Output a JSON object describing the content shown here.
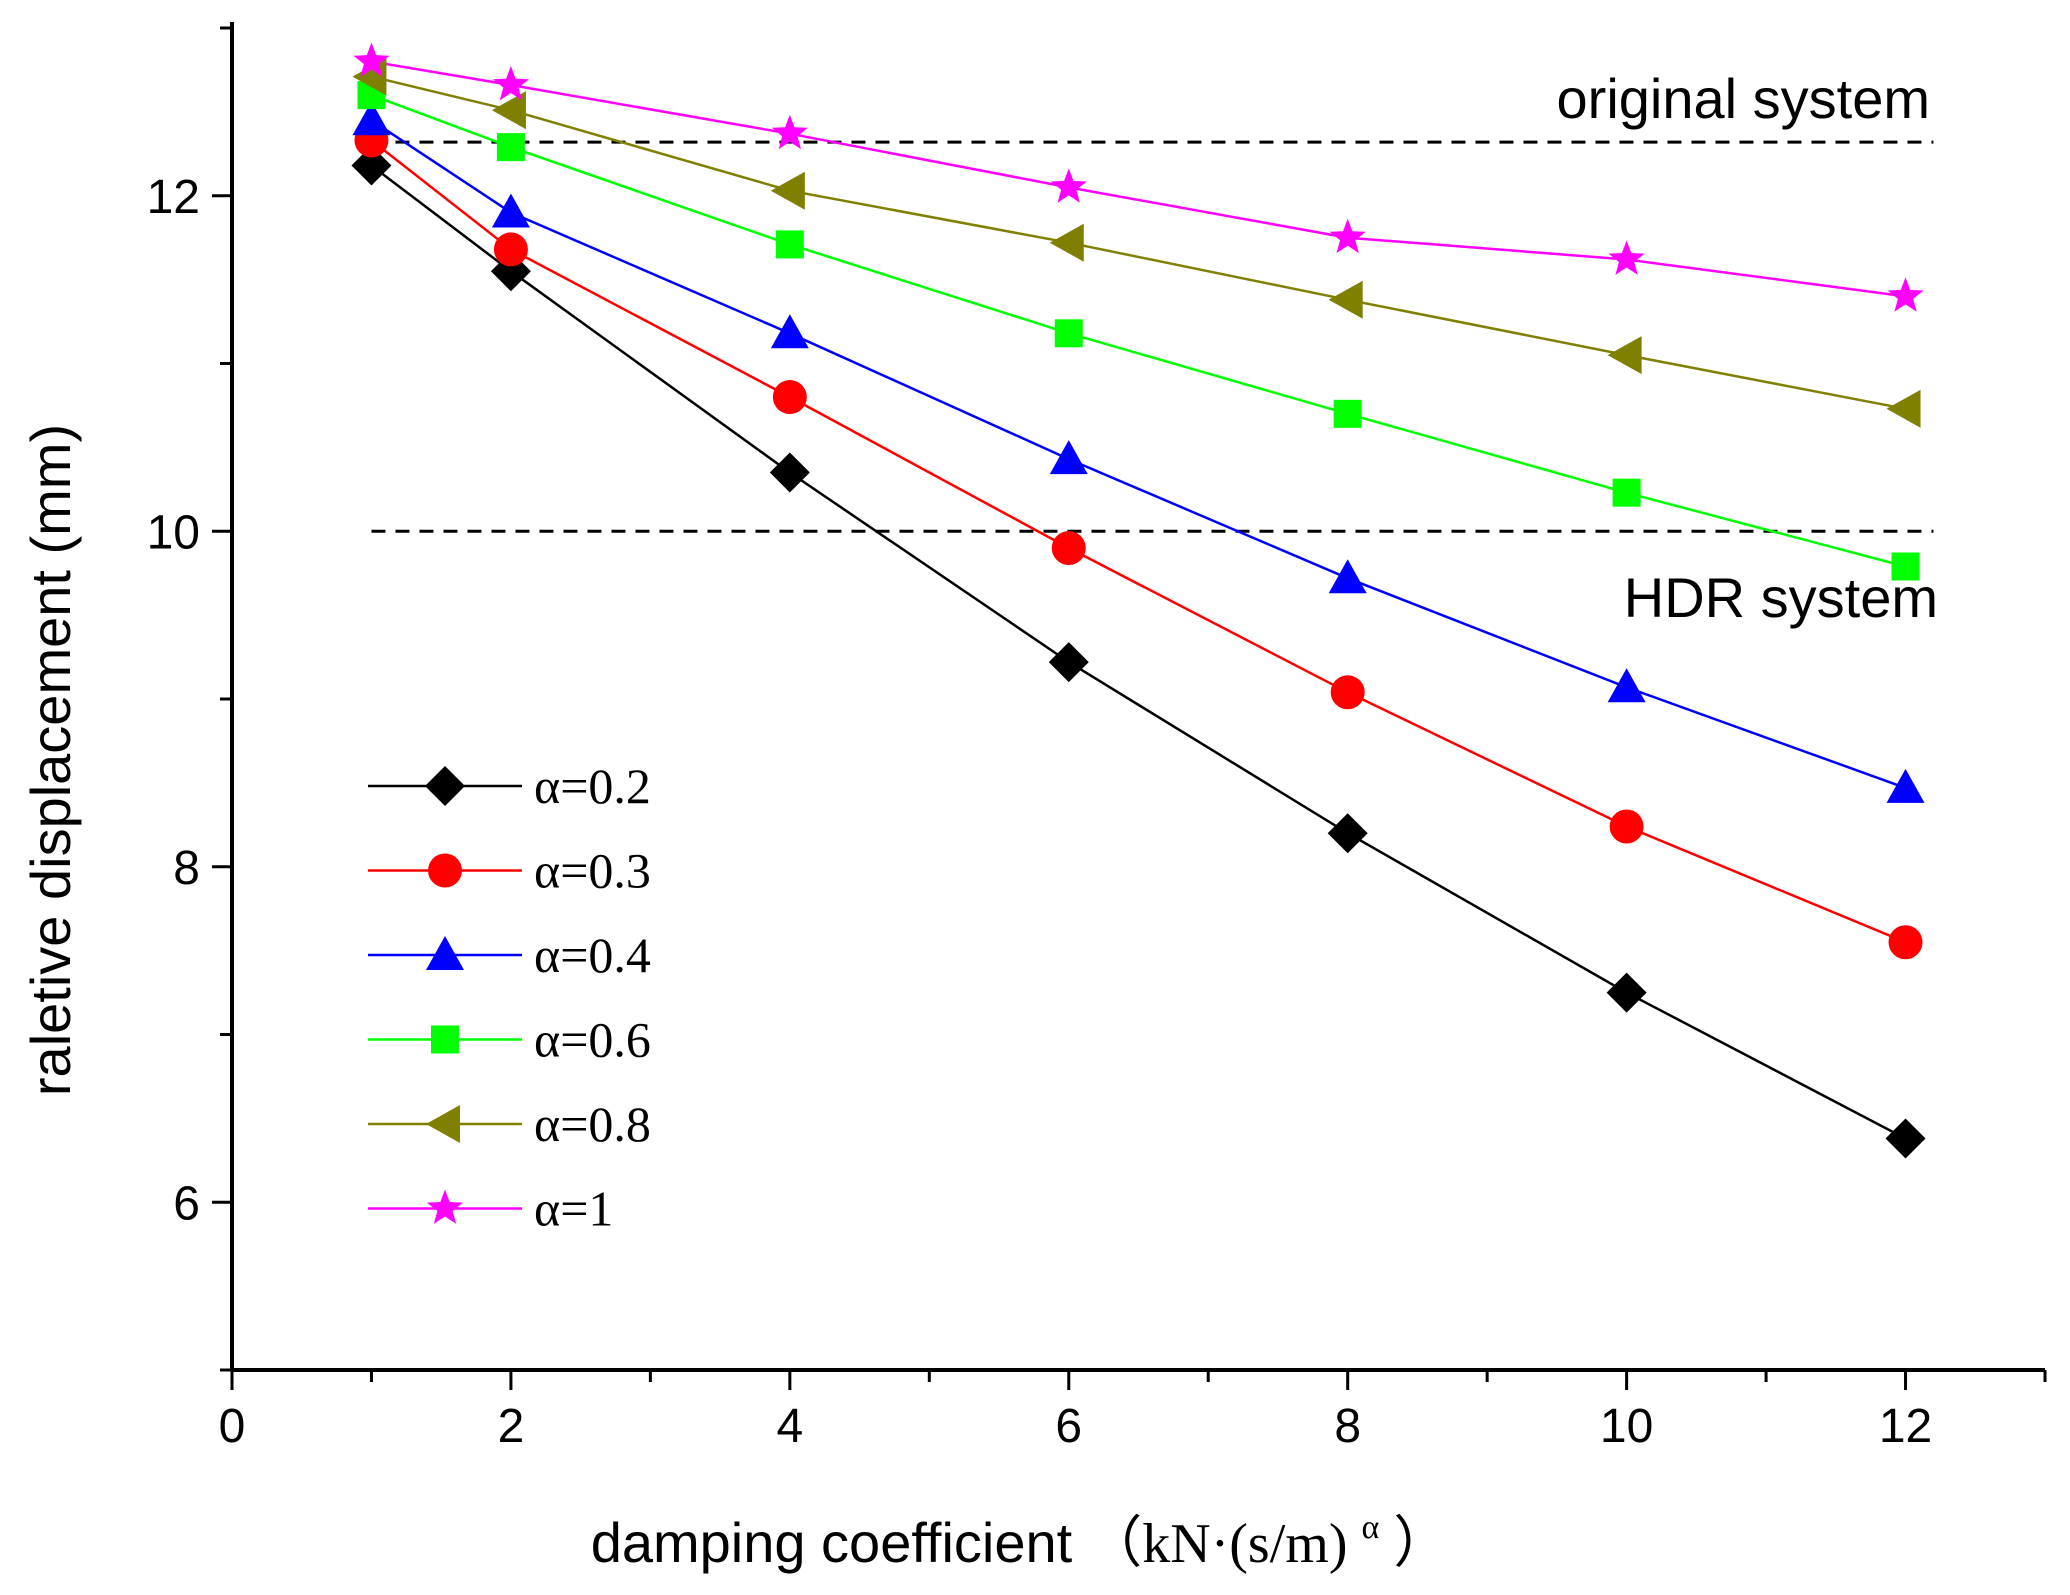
{
  "chart_data": {
    "type": "line",
    "title": "",
    "xlabel": "damping coefficient",
    "xlabel_unit_prefix": "（kN·(s/m)",
    "xlabel_unit_sup": "α",
    "xlabel_unit_suffix": "）",
    "ylabel": "raletive displacement (mm)",
    "xlim": [
      0,
      13
    ],
    "ylim": [
      5,
      13
    ],
    "x_ticks": [
      0,
      2,
      4,
      6,
      8,
      10,
      12
    ],
    "y_ticks": [
      6,
      8,
      10,
      12
    ],
    "x": [
      1,
      2,
      4,
      6,
      8,
      10,
      12
    ],
    "series": [
      {
        "name": "α=0.2",
        "color": "#000000",
        "marker": "diamond",
        "values": [
          12.18,
          11.55,
          10.35,
          9.22,
          8.2,
          7.25,
          6.38
        ]
      },
      {
        "name": "α=0.3",
        "color": "#ff0000",
        "marker": "circle",
        "values": [
          12.33,
          11.68,
          10.8,
          9.9,
          9.04,
          8.24,
          7.55
        ]
      },
      {
        "name": "α=0.4",
        "color": "#0000ff",
        "marker": "triangle-up",
        "values": [
          12.45,
          11.9,
          11.18,
          10.43,
          9.72,
          9.07,
          8.47
        ]
      },
      {
        "name": "α=0.6",
        "color": "#00ff00",
        "marker": "square",
        "values": [
          12.6,
          12.29,
          11.71,
          11.18,
          10.7,
          10.23,
          9.79
        ]
      },
      {
        "name": "α=0.8",
        "color": "#808000",
        "marker": "triangle-left",
        "values": [
          12.71,
          12.51,
          12.03,
          11.72,
          11.38,
          11.05,
          10.73
        ]
      },
      {
        "name": "α=1",
        "color": "#ff00ff",
        "marker": "star",
        "values": [
          12.8,
          12.66,
          12.37,
          12.05,
          11.75,
          11.62,
          11.4
        ]
      }
    ],
    "reference_lines": [
      {
        "name": "original system",
        "y": 12.32,
        "x_range": [
          1,
          12.2
        ],
        "style": "dashed"
      },
      {
        "name": "HDR system",
        "y": 10.0,
        "x_range": [
          1,
          12.2
        ],
        "style": "dashed"
      }
    ],
    "annotations": {
      "original": "original system",
      "hdr": "HDR system"
    },
    "legend_placement": "middle-left",
    "grid": false
  }
}
